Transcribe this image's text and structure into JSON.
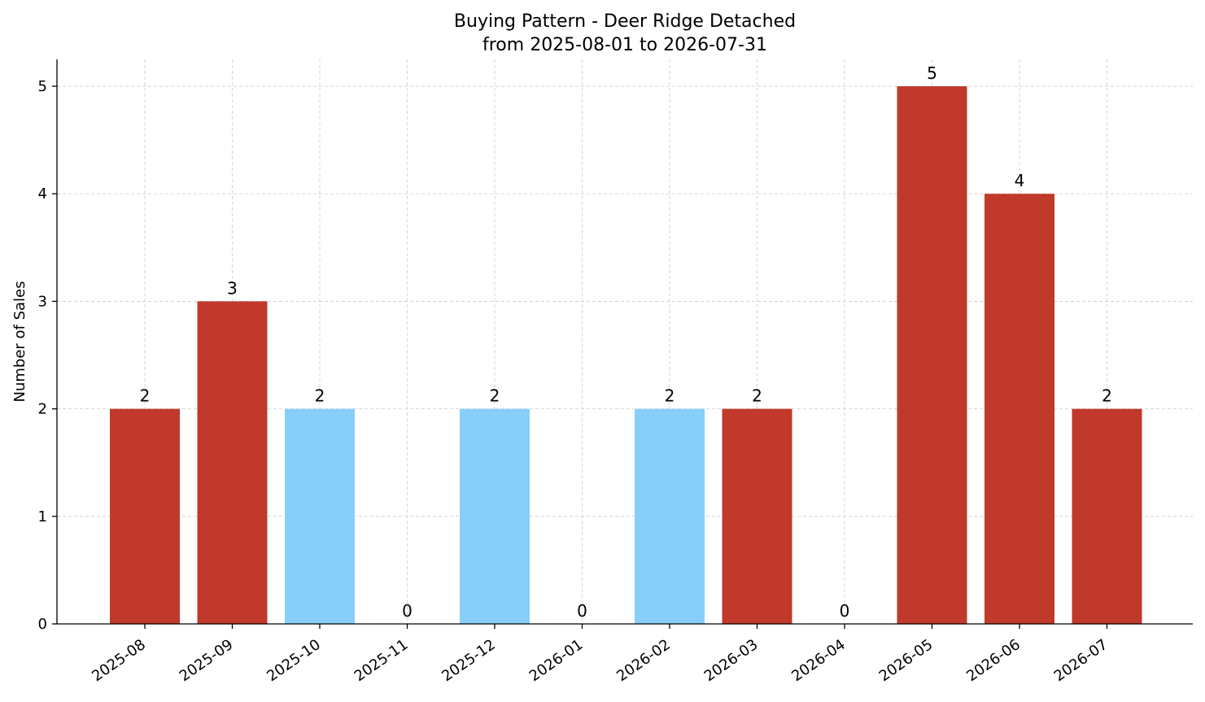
{
  "chart_data": {
    "type": "bar",
    "title": "Buying Pattern - Deer Ridge Detached",
    "subtitle": "from 2025-08-01 to 2026-07-31",
    "xlabel": "",
    "ylabel": "Number of Sales",
    "ylim": [
      0,
      5.25
    ],
    "yticks": [
      "0",
      "1",
      "2",
      "3",
      "4",
      "5"
    ],
    "grid": true,
    "categories": [
      "2025-08",
      "2025-09",
      "2025-10",
      "2025-11",
      "2025-12",
      "2026-01",
      "2026-02",
      "2026-03",
      "2026-04",
      "2026-05",
      "2026-06",
      "2026-07"
    ],
    "values": [
      2,
      3,
      2,
      0,
      2,
      0,
      2,
      2,
      0,
      5,
      4,
      2
    ],
    "value_labels": [
      "2",
      "3",
      "2",
      "0",
      "2",
      "0",
      "2",
      "2",
      "0",
      "5",
      "4",
      "2"
    ],
    "bar_colors": [
      "#c0392b",
      "#c0392b",
      "#87cefa",
      "#c0392b",
      "#87cefa",
      "#c0392b",
      "#87cefa",
      "#c0392b",
      "#c0392b",
      "#c0392b",
      "#c0392b",
      "#c0392b"
    ]
  }
}
